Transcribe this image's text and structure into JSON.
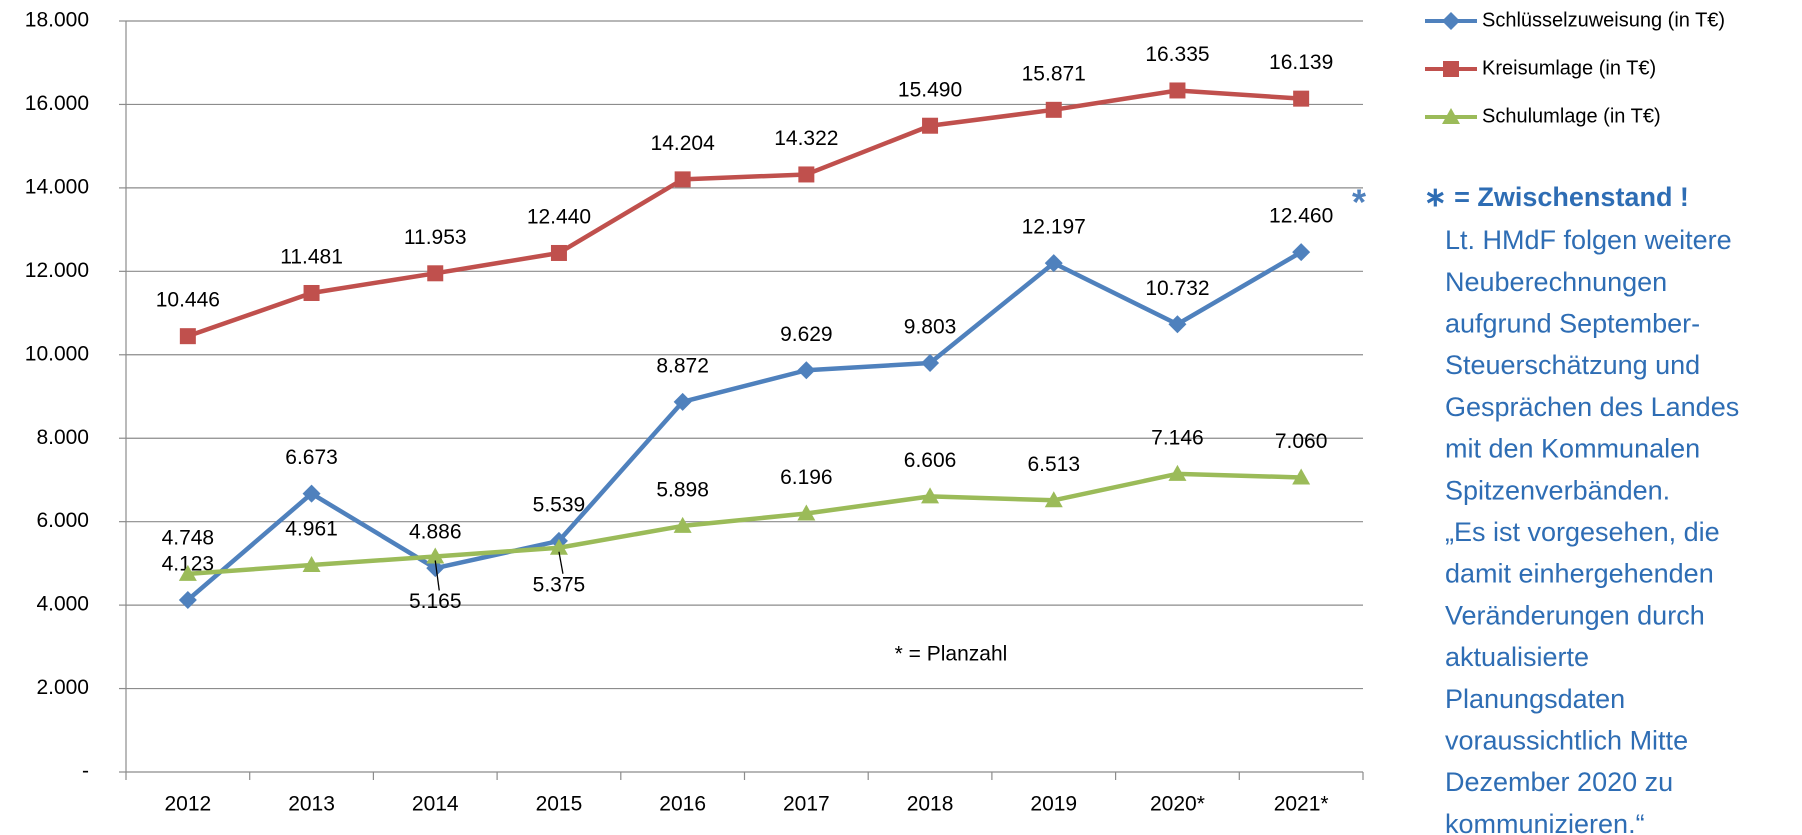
{
  "chart_data": {
    "type": "line",
    "categories": [
      "2012",
      "2013",
      "2014",
      "2015",
      "2016",
      "2017",
      "2018",
      "2019",
      "2020*",
      "2021*"
    ],
    "series": [
      {
        "name": "Schlüsselzuweisung  (in T€)",
        "color": "#4f81bd",
        "marker": "diamond",
        "values": [
          4123,
          6673,
          4886,
          5539,
          8872,
          9629,
          9803,
          12197,
          10732,
          12460
        ],
        "value_labels": [
          "4.123",
          "6.673",
          "4.886",
          "5.539",
          "8.872",
          "9.629",
          "9.803",
          "12.197",
          "10.732",
          "12.460"
        ]
      },
      {
        "name": "Kreisumlage (in T€)",
        "color": "#c0504d",
        "marker": "square",
        "values": [
          10446,
          11481,
          11953,
          12440,
          14204,
          14322,
          15490,
          15871,
          16335,
          16139
        ],
        "value_labels": [
          "10.446",
          "11.481",
          "11.953",
          "12.440",
          "14.204",
          "14.322",
          "15.490",
          "15.871",
          "16.335",
          "16.139"
        ]
      },
      {
        "name": "Schulumlage  (in T€)",
        "color": "#9bbb59",
        "marker": "triangle",
        "values": [
          4748,
          4961,
          5165,
          5375,
          5898,
          6196,
          6606,
          6513,
          7146,
          7060
        ],
        "value_labels": [
          "4.748",
          "4.961",
          "5.165",
          "5.375",
          "5.898",
          "6.196",
          "6.606",
          "6.513",
          "7.146",
          "7.060"
        ]
      }
    ],
    "ylim": [
      0,
      18000
    ],
    "yticks": [
      {
        "value": 0,
        "label": "-"
      },
      {
        "value": 2000,
        "label": "2.000"
      },
      {
        "value": 4000,
        "label": "4.000"
      },
      {
        "value": 6000,
        "label": "6.000"
      },
      {
        "value": 8000,
        "label": "8.000"
      },
      {
        "value": 10000,
        "label": "10.000"
      },
      {
        "value": 12000,
        "label": "12.000"
      },
      {
        "value": 14000,
        "label": "14.000"
      },
      {
        "value": 16000,
        "label": "16.000"
      },
      {
        "value": 18000,
        "label": "18.000"
      }
    ],
    "grid": true,
    "legend": "right",
    "annotations": {
      "planzahl": "* = Planzahl",
      "asterisk": "*"
    },
    "note": {
      "title": "∗ = Zwischenstand !",
      "lines": [
        "Lt. HMdF folgen weitere",
        "Neuberechnungen",
        "aufgrund September-",
        "Steuerschätzung und",
        "Gesprächen des Landes",
        "mit den Kommunalen",
        "Spitzenverbänden.",
        "„Es ist vorgesehen, die",
        "damit einhergehenden",
        "Veränderungen durch",
        "aktualisierte",
        "Planungsdaten",
        "voraussichtlich Mitte",
        "Dezember 2020 zu",
        "kommunizieren.“"
      ]
    }
  }
}
